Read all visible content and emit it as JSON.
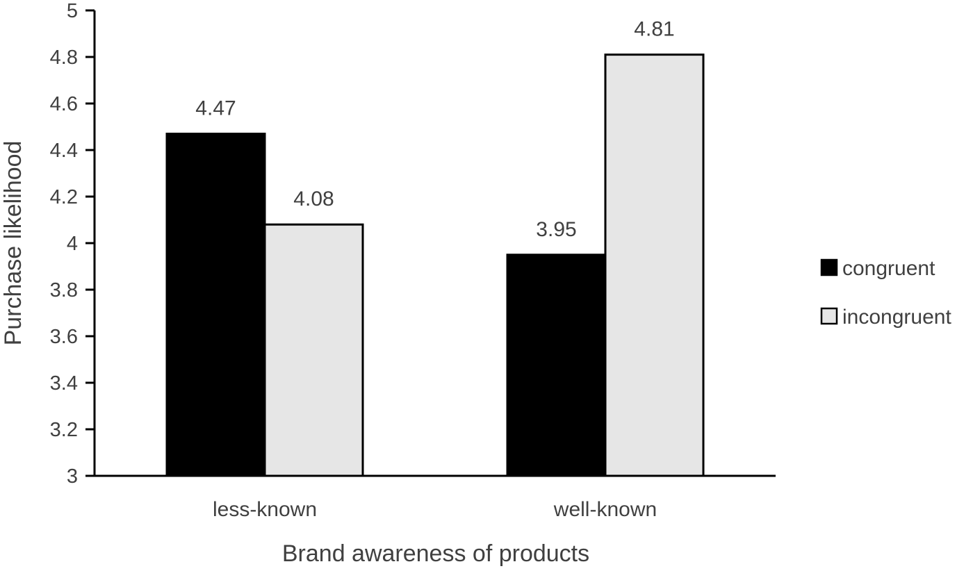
{
  "chart_data": {
    "type": "bar",
    "title": "",
    "xlabel": "Brand awareness of products",
    "ylabel": "Purchase likelihood",
    "ylim": [
      3,
      5
    ],
    "yticks": [
      3,
      3.2,
      3.4,
      3.6,
      3.8,
      4,
      4.2,
      4.4,
      4.6,
      4.8,
      5
    ],
    "ytick_labels": [
      "3",
      "3.2",
      "3.4",
      "3.6",
      "3.8",
      "4",
      "4.2",
      "4.4",
      "4.6",
      "4.8",
      "5"
    ],
    "categories": [
      "less-known",
      "well-known"
    ],
    "series": [
      {
        "name": "congruent",
        "values": [
          4.47,
          3.95
        ],
        "labels": [
          "4.47",
          "3.95"
        ],
        "color": "#000000"
      },
      {
        "name": "incongruent",
        "values": [
          4.08,
          4.81
        ],
        "labels": [
          "4.08",
          "4.81"
        ],
        "color": "#e6e6e6"
      }
    ],
    "grid": false,
    "legend": "right",
    "data_labels": true
  }
}
